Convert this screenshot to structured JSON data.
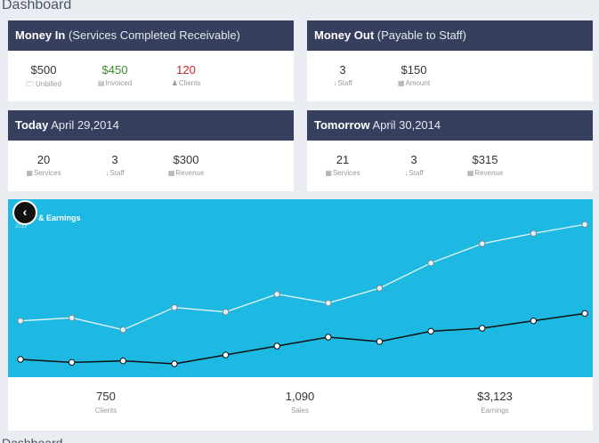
{
  "page_title": "Dashboard",
  "page_title_bottom": "Dashboard",
  "money_in": {
    "title_bold": "Money In",
    "title_rest": "(Services Completed Receivable)",
    "stats": [
      {
        "value": "$500",
        "label": "Unbilled",
        "icon": "folder-icon"
      },
      {
        "value": "$450",
        "label": "Invoiced",
        "icon": "document-icon"
      },
      {
        "value": "120",
        "label": "Clients",
        "icon": "user-icon"
      }
    ]
  },
  "money_out": {
    "title_bold": "Money Out",
    "title_rest": "(Payable to Staff)",
    "stats": [
      {
        "value": "3",
        "label": "Staff",
        "icon": "staff-icon"
      },
      {
        "value": "$150",
        "label": "Amount",
        "icon": "money-icon"
      }
    ]
  },
  "today": {
    "title_bold": "Today",
    "title_rest": "April 29,2014",
    "stats": [
      {
        "value": "20",
        "label": "Services",
        "icon": "grid-icon"
      },
      {
        "value": "3",
        "label": "Staff",
        "icon": "staff-icon"
      },
      {
        "value": "$300",
        "label": "Revenue",
        "icon": "money-icon"
      }
    ]
  },
  "tomorrow": {
    "title_bold": "Tomorrow",
    "title_rest": "April 30,2014",
    "stats": [
      {
        "value": "21",
        "label": "Services",
        "icon": "grid-icon"
      },
      {
        "value": "3",
        "label": "Staff",
        "icon": "staff-icon"
      },
      {
        "value": "$315",
        "label": "Revenue",
        "icon": "money-icon"
      }
    ]
  },
  "chart_data": {
    "type": "line",
    "title": "& Earnings",
    "subtitle": "2013",
    "x": [
      1,
      2,
      3,
      4,
      5,
      6,
      7,
      8,
      9,
      10,
      11,
      12
    ],
    "series": [
      {
        "values": [
          38,
          40,
          32,
          47,
          44,
          56,
          50,
          60,
          77,
          90,
          97,
          103
        ]
      },
      {
        "values": [
          12,
          10,
          11,
          9,
          15,
          21,
          27,
          24,
          31,
          33,
          38,
          43
        ]
      }
    ],
    "ylim": [
      0,
      120
    ],
    "colors": {
      "background": "#1db9e2",
      "series1": "#e8f6fb",
      "series2": "#111111"
    }
  },
  "footer": {
    "stats": [
      {
        "value": "750",
        "label": "Clients"
      },
      {
        "value": "1,090",
        "label": "Sales"
      },
      {
        "value": "$3,123",
        "label": "Earnings"
      }
    ]
  },
  "back_button_icon": "chevron-left-icon"
}
